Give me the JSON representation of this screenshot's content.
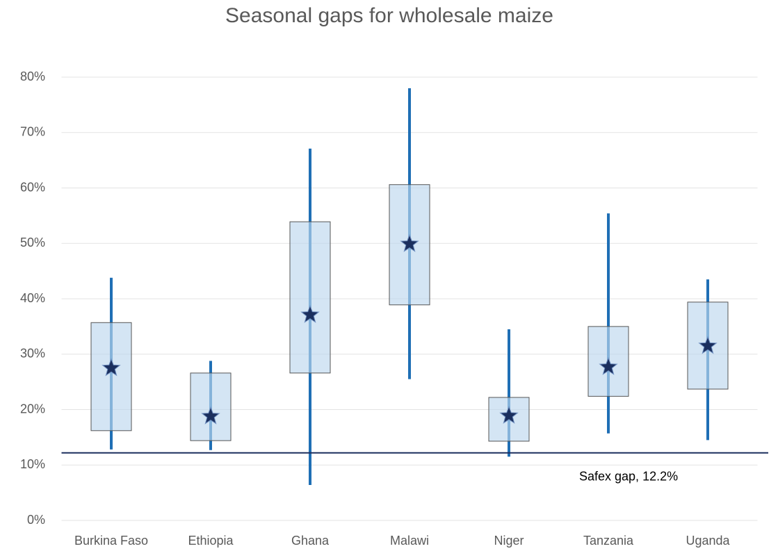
{
  "chart_data": {
    "type": "box",
    "title": "Seasonal gaps for wholesale maize",
    "categories": [
      "Burkina Faso",
      "Ethiopia",
      "Ghana",
      "Malawi",
      "Niger",
      "Tanzania",
      "Uganda"
    ],
    "min": [
      12.8,
      12.7,
      6.4,
      25.5,
      11.5,
      15.7,
      14.5
    ],
    "q1": [
      16.2,
      14.4,
      26.6,
      38.9,
      14.3,
      22.4,
      23.7
    ],
    "center": [
      27.5,
      18.8,
      37.1,
      49.9,
      18.9,
      27.7,
      31.5
    ],
    "q3": [
      35.7,
      26.6,
      53.9,
      60.6,
      22.2,
      35.0,
      39.4
    ],
    "max": [
      43.8,
      28.8,
      67.1,
      78.0,
      34.5,
      55.4,
      43.5
    ],
    "whisker_color": "#1f6fb5",
    "box_color": "#bdd7ee",
    "marker_color": "#1b2f5e",
    "reference_line": {
      "value": 12.2,
      "label": "Safex gap, 12.2%",
      "color": "#1b2f5e"
    },
    "ylim": [
      0,
      80
    ],
    "yticks": [
      {
        "value": 0,
        "label": "0%"
      },
      {
        "value": 10,
        "label": "10%"
      },
      {
        "value": 20,
        "label": "20%"
      },
      {
        "value": 30,
        "label": "30%"
      },
      {
        "value": 40,
        "label": "40%"
      },
      {
        "value": 50,
        "label": "50%"
      },
      {
        "value": 60,
        "label": "60%"
      },
      {
        "value": 70,
        "label": "70%"
      },
      {
        "value": 80,
        "label": "80%"
      }
    ],
    "grid": true
  }
}
